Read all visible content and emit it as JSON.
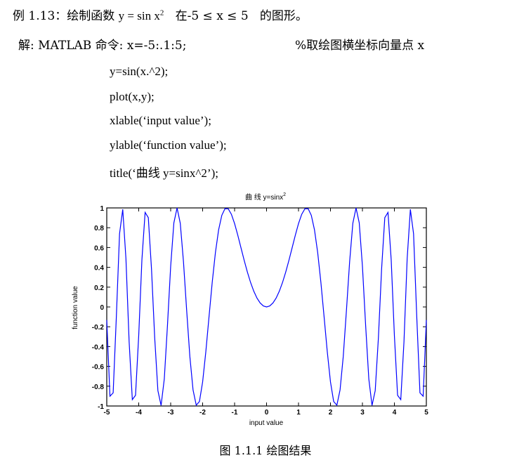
{
  "example": {
    "prefix": "例 1.13：绘制函数",
    "func_lhs": "y = sin x",
    "func_sup": "2",
    "range": "在-5 ≤ x ≤ 5",
    "suffix": "的图形。"
  },
  "solution": {
    "label": "解: MATLAB 命令: x=-5:.1:5;",
    "comment": "%取绘图横坐标向量点 x"
  },
  "code_lines": [
    "y=sin(x.^2);",
    "plot(x,y);",
    "xlable(‘input value’);",
    "ylable(‘function value’);",
    "title(‘曲线 y=sinx^2’);"
  ],
  "chart_data": {
    "type": "line",
    "title_main": "曲 线 y=sinx",
    "title_sup": "2",
    "xlabel": "input value",
    "ylabel": "function value",
    "xlim": [
      -5,
      5
    ],
    "ylim": [
      -1,
      1
    ],
    "xticks": [
      "-5",
      "-4",
      "-3",
      "-2",
      "-1",
      "0",
      "1",
      "2",
      "3",
      "4",
      "5"
    ],
    "yticks": [
      "1",
      "0.8",
      "0.6",
      "0.4",
      "0.2",
      "0",
      "-0.2",
      "-0.4",
      "-0.6",
      "-0.8",
      "-1"
    ],
    "series": [
      {
        "function": "y = sin(x^2)",
        "x_start": -5,
        "x_step": 0.1,
        "x_end": 5,
        "color": "#0000ff"
      }
    ]
  },
  "caption": "图 1.1.1 绘图结果"
}
